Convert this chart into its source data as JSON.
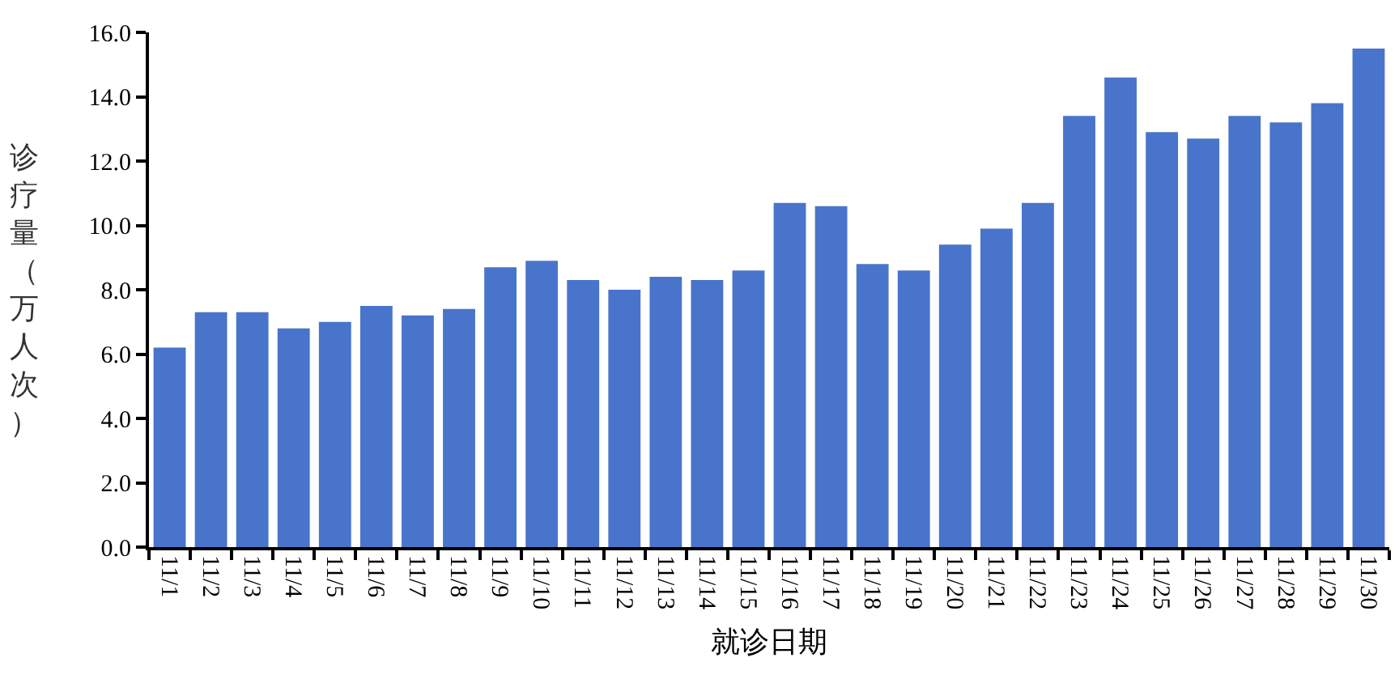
{
  "chart_data": {
    "type": "bar",
    "xlabel": "就诊日期",
    "ylabel": "诊疗量（万人次）",
    "categories": [
      "11/1",
      "11/2",
      "11/3",
      "11/4",
      "11/5",
      "11/6",
      "11/7",
      "11/8",
      "11/9",
      "11/10",
      "11/11",
      "11/12",
      "11/13",
      "11/14",
      "11/15",
      "11/16",
      "11/17",
      "11/18",
      "11/19",
      "11/20",
      "11/21",
      "11/22",
      "11/23",
      "11/24",
      "11/25",
      "11/26",
      "11/27",
      "11/28",
      "11/29",
      "11/30"
    ],
    "values": [
      6.2,
      7.3,
      7.3,
      6.8,
      7.0,
      7.5,
      7.2,
      7.4,
      8.7,
      8.9,
      8.3,
      8.0,
      8.4,
      8.3,
      8.6,
      10.7,
      10.6,
      8.8,
      8.6,
      9.4,
      9.9,
      10.7,
      13.4,
      14.6,
      12.9,
      12.7,
      13.4,
      13.2,
      13.8,
      15.5
    ],
    "color": "#4874cb",
    "ylim": [
      0,
      16
    ],
    "yticks": [
      {
        "value": 0,
        "label": "0.0"
      },
      {
        "value": 2,
        "label": "2.0"
      },
      {
        "value": 4,
        "label": "4.0"
      },
      {
        "value": 6,
        "label": "6.0"
      },
      {
        "value": 8,
        "label": "8.0"
      },
      {
        "value": 10,
        "label": "10.0"
      },
      {
        "value": 12,
        "label": "12.0"
      },
      {
        "value": 14,
        "label": "14.0"
      },
      {
        "value": 16,
        "label": "16.0"
      }
    ]
  }
}
